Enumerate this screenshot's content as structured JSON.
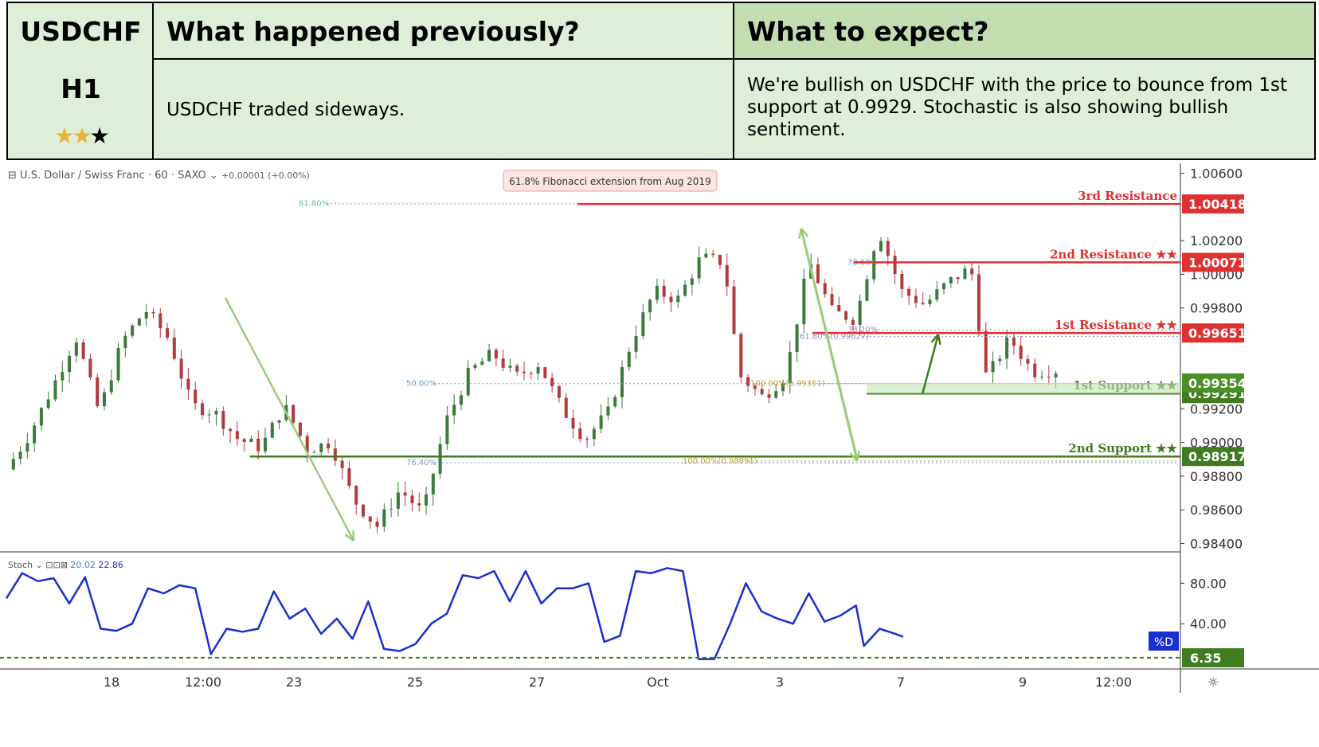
{
  "header": {
    "symbol": "USDCHF",
    "timeframe": "H1",
    "stars_filled": 2,
    "stars_total": 3,
    "prev_title": "What happened previously?",
    "prev_text": "USDCHF traded sideways.",
    "exp_title": "What to expect?",
    "exp_text": "We're bullish on USDCHF with the price to bounce from 1st support at 0.9929. Stochastic is also showing bullish sentiment."
  },
  "chart_header": {
    "symbol_line": "U.S. Dollar / Swiss Franc · 60 · SAXO",
    "change": "+0.00001 (+0.00%)",
    "stoch_label": "Stoch",
    "stoch_k": "20.02",
    "stoch_d": "22.86",
    "fib_callout": "61.8% Fibonacci extension from Aug 2019"
  },
  "chart_data": {
    "type": "candlestick",
    "title": "U.S. Dollar / Swiss Franc · 60 · SAXO",
    "ylim": [
      0.9835,
      1.0066
    ],
    "y_ticks": [
      "1.00600",
      "1.00200",
      "1.00000",
      "0.99800",
      "0.99200",
      "0.99000",
      "0.98800",
      "0.98600",
      "0.98400"
    ],
    "x_ticks": [
      "18",
      "12:00",
      "23",
      "25",
      "27",
      "Oct",
      "3",
      "7",
      "9",
      "12:00"
    ],
    "price_path": [
      [
        0,
        0.9884
      ],
      [
        3,
        0.9905
      ],
      [
        6,
        0.9933
      ],
      [
        9,
        0.9963
      ],
      [
        12,
        0.9918
      ],
      [
        15,
        0.996
      ],
      [
        18,
        0.9979
      ],
      [
        21,
        0.9962
      ],
      [
        24,
        0.9922
      ],
      [
        27,
        0.9918
      ],
      [
        30,
        0.9902
      ],
      [
        33,
        0.9897
      ],
      [
        36,
        0.9922
      ],
      [
        39,
        0.9896
      ],
      [
        42,
        0.99
      ],
      [
        45,
        0.9866
      ],
      [
        48,
        0.985
      ],
      [
        51,
        0.9872
      ],
      [
        54,
        0.9858
      ],
      [
        57,
        0.9913
      ],
      [
        60,
        0.9942
      ],
      [
        63,
        0.9953
      ],
      [
        66,
        0.9939
      ],
      [
        69,
        0.9947
      ],
      [
        72,
        0.992
      ],
      [
        75,
        0.9902
      ],
      [
        78,
        0.9918
      ],
      [
        81,
        0.996
      ],
      [
        84,
        0.999
      ],
      [
        87,
        0.9985
      ],
      [
        90,
        1.001
      ],
      [
        93,
        1.0007
      ],
      [
        95,
        0.994
      ],
      [
        98,
        0.9927
      ],
      [
        101,
        0.994
      ],
      [
        104,
        1.0008
      ],
      [
        107,
        0.9978
      ],
      [
        110,
        0.9973
      ],
      [
        113,
        1.0027
      ],
      [
        116,
        0.999
      ],
      [
        119,
        0.9982
      ],
      [
        122,
        0.9995
      ],
      [
        125,
        1.0004
      ],
      [
        127,
        0.9938
      ],
      [
        130,
        0.9962
      ],
      [
        133,
        0.9942
      ],
      [
        136,
        0.9943
      ]
    ],
    "levels": [
      {
        "name": "3rd Resistance",
        "value": 1.00418,
        "label": "1.00418",
        "color": "#e03131"
      },
      {
        "name": "2nd Resistance ★★",
        "value": 1.00071,
        "label": "1.00071",
        "color": "#e03131"
      },
      {
        "name": "1st Resistance ★★",
        "value": 0.99651,
        "label": "0.99651",
        "color": "#e03131"
      },
      {
        "name": "1st Support ★★",
        "value": 0.99291,
        "label": "0.99291",
        "color": "#3f7d20"
      },
      {
        "name": "2nd Support ★★",
        "value": 0.98917,
        "label": "0.98917",
        "color": "#3f7d20"
      }
    ],
    "last_price": {
      "value": 0.99354,
      "label": "0.99354",
      "color": "#4b8f27"
    },
    "fib_levels": [
      {
        "label": "61.80%",
        "value": 1.0042
      },
      {
        "label": "50.00%",
        "value": 0.9935
      },
      {
        "label": "76.40%",
        "value": 0.9888
      },
      {
        "label": "100.00%(0.99351)",
        "value": 0.9935
      },
      {
        "label": "100.00%(0.98891)",
        "value": 0.9889
      },
      {
        "label": "78.60%",
        "value": 1.0007
      },
      {
        "label": "38.20%",
        "value": 0.9967
      },
      {
        "label": "61.80%(0.99627)",
        "value": 0.9963
      }
    ],
    "stochastic": {
      "ylim": [
        0,
        100
      ],
      "y_ticks": [
        "80.00",
        "40.00"
      ],
      "level_label": "6.35",
      "level_value": 6.35,
      "badge": "%D",
      "values": [
        [
          0,
          65
        ],
        [
          2,
          90
        ],
        [
          4,
          82
        ],
        [
          6,
          85
        ],
        [
          8,
          60
        ],
        [
          10,
          86
        ],
        [
          12,
          35
        ],
        [
          14,
          33
        ],
        [
          16,
          40
        ],
        [
          18,
          75
        ],
        [
          20,
          70
        ],
        [
          22,
          78
        ],
        [
          24,
          75
        ],
        [
          26,
          10
        ],
        [
          28,
          35
        ],
        [
          30,
          32
        ],
        [
          32,
          35
        ],
        [
          34,
          72
        ],
        [
          36,
          45
        ],
        [
          38,
          55
        ],
        [
          40,
          30
        ],
        [
          42,
          45
        ],
        [
          44,
          25
        ],
        [
          46,
          62
        ],
        [
          48,
          15
        ],
        [
          50,
          13
        ],
        [
          52,
          20
        ],
        [
          54,
          40
        ],
        [
          56,
          50
        ],
        [
          58,
          88
        ],
        [
          60,
          85
        ],
        [
          62,
          92
        ],
        [
          64,
          62
        ],
        [
          66,
          92
        ],
        [
          68,
          60
        ],
        [
          70,
          75
        ],
        [
          72,
          75
        ],
        [
          74,
          80
        ],
        [
          76,
          22
        ],
        [
          78,
          28
        ],
        [
          80,
          92
        ],
        [
          82,
          90
        ],
        [
          84,
          95
        ],
        [
          86,
          92
        ],
        [
          88,
          5
        ],
        [
          90,
          5
        ],
        [
          92,
          40
        ],
        [
          94,
          80
        ],
        [
          96,
          52
        ],
        [
          98,
          45
        ],
        [
          100,
          40
        ],
        [
          102,
          70
        ],
        [
          104,
          42
        ],
        [
          106,
          48
        ],
        [
          108,
          58
        ],
        [
          109,
          18
        ],
        [
          111,
          35
        ],
        [
          113,
          30
        ],
        [
          114,
          27
        ]
      ]
    }
  },
  "colors": {
    "candle_up": "#3a7a3a",
    "candle_down": "#b23a3a",
    "arrow": "#9dcb7d",
    "stoch_line": "#1a2fd0"
  }
}
